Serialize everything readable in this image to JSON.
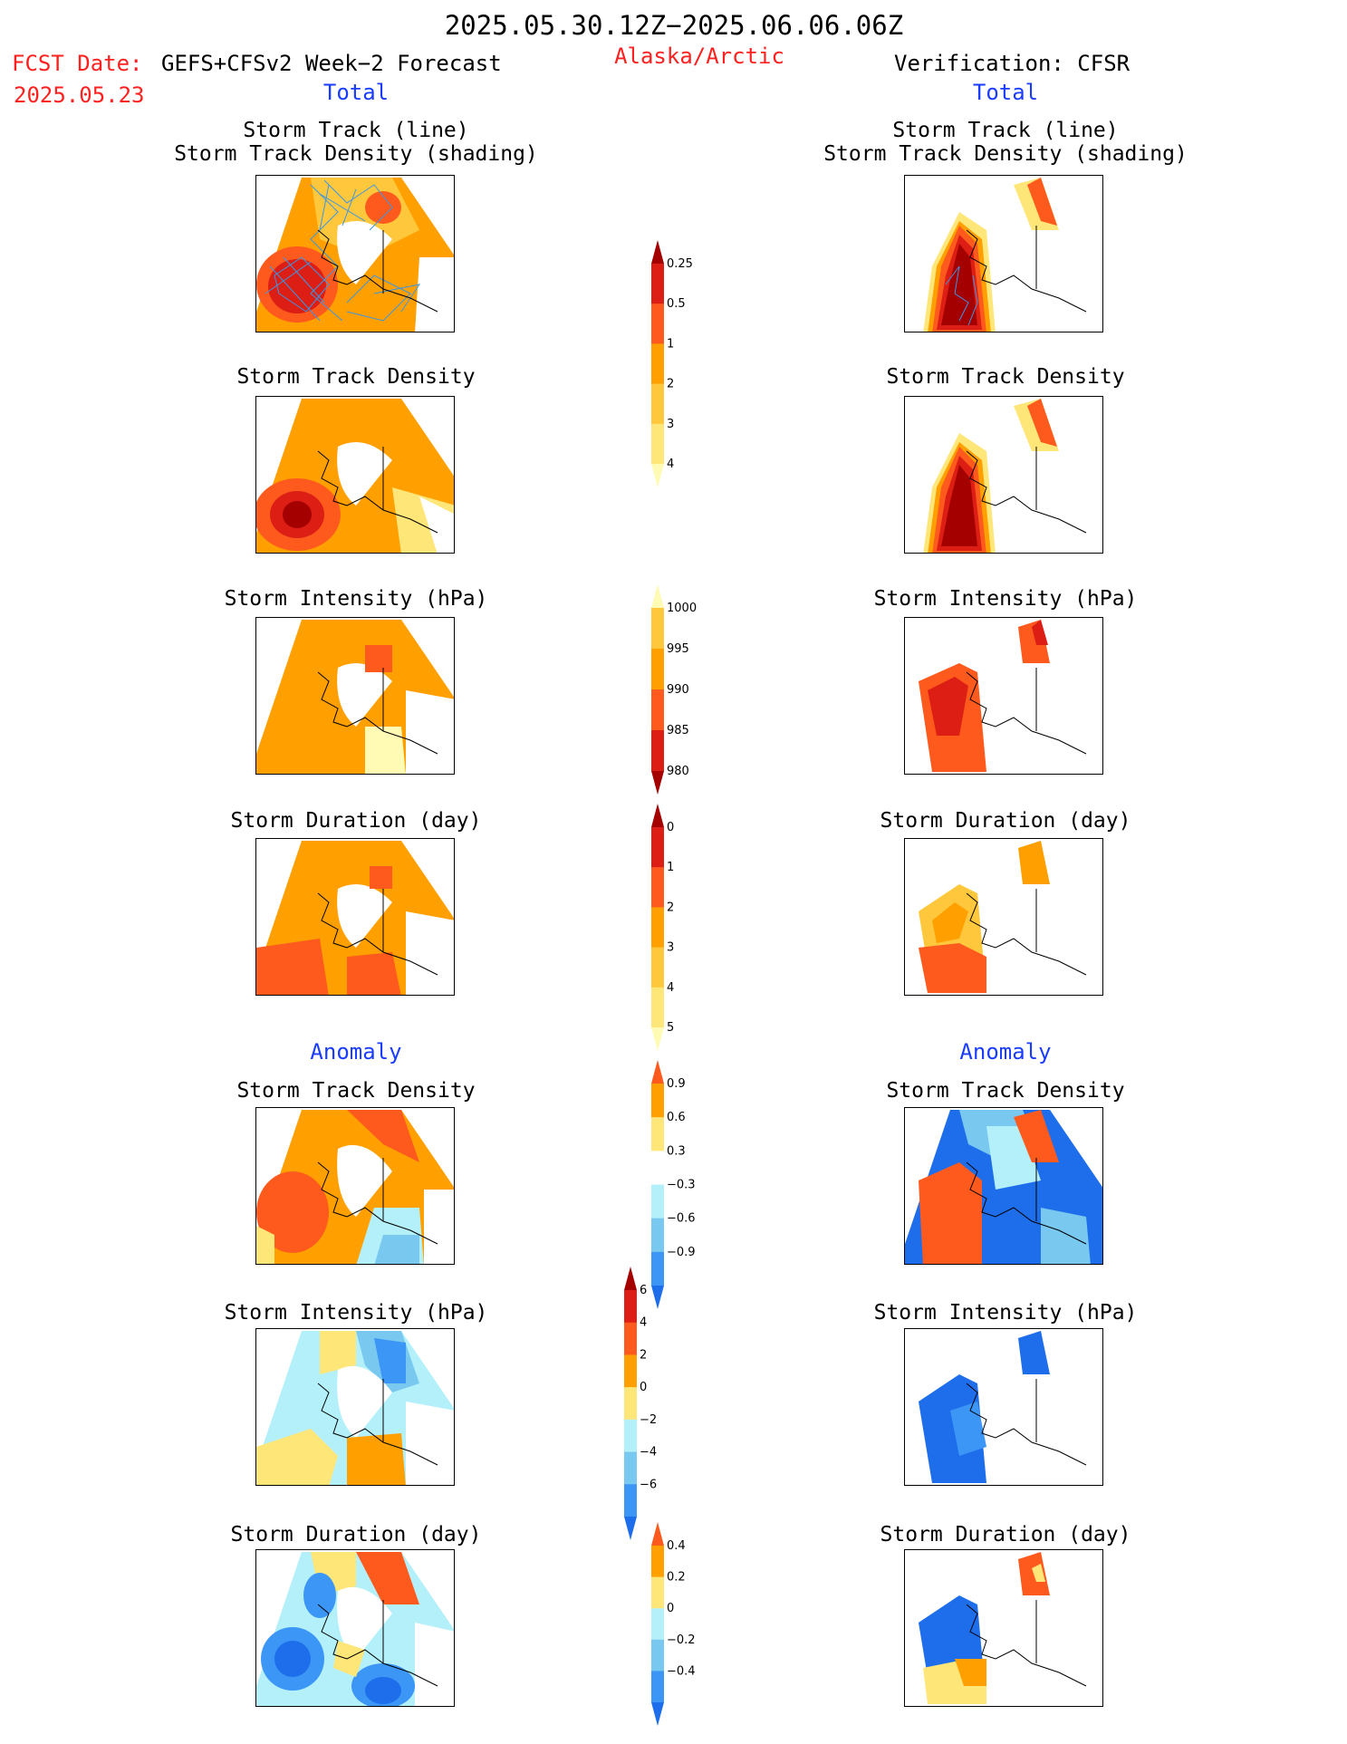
{
  "header": {
    "period": "2025.05.30.12Z−2025.06.06.06Z",
    "fcst_label": "FCST Date:",
    "fcst_model": "GEFS+CFSv2 Week−2 Forecast",
    "fcst_date": "2025.05.23",
    "region": "Alaska/Arctic",
    "verification": "Verification: CFSR",
    "total_left": "Total",
    "total_right": "Total",
    "anomaly_left": "Anomaly",
    "anomaly_right": "Anomaly"
  },
  "panel_titles": {
    "track_line": "Storm Track (line)",
    "track_density_shading": "Storm Track Density (shading)",
    "track_density": "Storm Track Density",
    "intensity": "Storm Intensity (hPa)",
    "duration": "Storm Duration (day)"
  },
  "colors": {
    "c_darkred": "#a50000",
    "c_red": "#dc1e14",
    "c_orangered": "#ff5a1e",
    "c_orange": "#ffa000",
    "c_lightorange": "#ffc83c",
    "c_yellow": "#ffe678",
    "c_paleyellow": "#fffab4",
    "c_white": "#ffffff",
    "c_lightblue": "#b4f0fa",
    "c_skyblue": "#78c8f0",
    "c_blue": "#3c96f5",
    "c_darkblue": "#1e6eeb",
    "c_navy": "#1450c8",
    "track_line": "#3c96e6"
  },
  "chart_data": [
    {
      "type": "heatmap",
      "name": "total_density_colorbar",
      "levels": [
        "0.25",
        "0.5",
        "1",
        "2",
        "3",
        "4"
      ],
      "colors": [
        "#fffab4",
        "#ffe678",
        "#ffc83c",
        "#ffa000",
        "#ff5a1e",
        "#dc1e14",
        "#a50000"
      ],
      "tick_labels": [
        "0.25",
        "0.5",
        "1",
        "2",
        "3",
        "4"
      ]
    },
    {
      "type": "heatmap",
      "name": "total_intensity_colorbar",
      "levels": [
        "980",
        "985",
        "990",
        "995",
        "1000"
      ],
      "colors": [
        "#a50000",
        "#dc1e14",
        "#ff5a1e",
        "#ffa000",
        "#ffc83c",
        "#fffab4"
      ],
      "tick_labels": [
        "1000",
        "995",
        "990",
        "985",
        "980"
      ]
    },
    {
      "type": "heatmap",
      "name": "total_duration_colorbar",
      "levels": [
        "0",
        "1",
        "2",
        "3",
        "4",
        "5"
      ],
      "colors": [
        "#fffab4",
        "#ffe678",
        "#ffc83c",
        "#ffa000",
        "#ff5a1e",
        "#dc1e14",
        "#a50000"
      ],
      "tick_labels": [
        "0",
        "1",
        "2",
        "3",
        "4",
        "5"
      ]
    },
    {
      "type": "heatmap",
      "name": "anomaly_density_colorbar",
      "levels": [
        "−0.9",
        "−0.6",
        "−0.3",
        "0.3",
        "0.6",
        "0.9"
      ],
      "colors": [
        "#1e6eeb",
        "#3c96f5",
        "#78c8f0",
        "#b4f0fa",
        "#ffffff",
        "#ffe678",
        "#ffa000",
        "#ff5a1e"
      ],
      "tick_labels": [
        "0.9",
        "0.6",
        "0.3",
        "−0.3",
        "−0.6",
        "−0.9"
      ]
    },
    {
      "type": "heatmap",
      "name": "anomaly_intensity_colorbar",
      "levels": [
        "−6",
        "−4",
        "−2",
        "0",
        "2",
        "4",
        "6"
      ],
      "colors": [
        "#1e6eeb",
        "#3c96f5",
        "#78c8f0",
        "#b4f0fa",
        "#ffe678",
        "#ffa000",
        "#ff5a1e",
        "#dc1e14",
        "#a50000"
      ],
      "tick_labels": [
        "6",
        "4",
        "2",
        "0",
        "−2",
        "−4",
        "−6"
      ]
    },
    {
      "type": "heatmap",
      "name": "anomaly_duration_colorbar",
      "levels": [
        "−0.4",
        "−0.2",
        "0",
        "0.2",
        "0.4"
      ],
      "colors": [
        "#1e6eeb",
        "#3c96f5",
        "#78c8f0",
        "#b4f0fa",
        "#ffe678",
        "#ffa000",
        "#ff5a1e"
      ],
      "tick_labels": [
        "0.4",
        "0.2",
        "0",
        "−0.2",
        "−0.4"
      ]
    }
  ]
}
